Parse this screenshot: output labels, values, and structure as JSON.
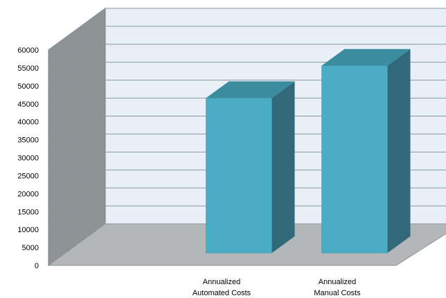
{
  "chart_data": {
    "type": "bar",
    "style": "3d-column",
    "categories": [
      "Annualized Automated Costs",
      "Annualized Manual Costs"
    ],
    "category_lines": [
      [
        "Annualized",
        "Automated Costs"
      ],
      [
        "Annualized",
        "Manual Costs"
      ]
    ],
    "values": [
      47000,
      56000
    ],
    "ylim": [
      0,
      60000
    ],
    "yticks": [
      0,
      5000,
      10000,
      15000,
      20000,
      25000,
      30000,
      35000,
      40000,
      45000,
      50000,
      55000,
      60000
    ],
    "title": "",
    "xlabel": "",
    "ylabel": "",
    "grid": true,
    "legend": "none"
  },
  "colors": {
    "bar_front": "#4bacc6",
    "bar_top": "#3b8c9f",
    "bar_side": "#31687a",
    "back_wall": "#e9eff6",
    "side_wall": "#8e9396",
    "floor": "#b3b7ba",
    "gridline": "#8b959e"
  }
}
